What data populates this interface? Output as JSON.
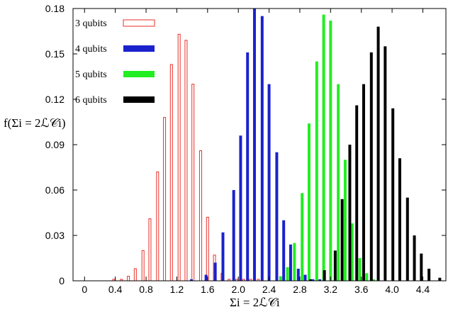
{
  "chart_data": {
    "type": "bar",
    "xlabel": "Σi = 2ℒ𝒞i",
    "ylabel": "f(Σi = 2ℒ𝒞i)",
    "xlim": [
      -0.15,
      4.7
    ],
    "ylim": [
      0,
      0.18
    ],
    "x_ticks": [
      "0",
      "0.4",
      "0.8",
      "1.2",
      "1.6",
      "2.0",
      "2.4",
      "2.8",
      "3.2",
      "3.6",
      "4.0",
      "4.4"
    ],
    "y_ticks": [
      "0",
      "0.03",
      "0.06",
      "0.09",
      "0.12",
      "0.15",
      "0.18"
    ],
    "legend_position": "top-left",
    "series": [
      {
        "name": "3 qubits",
        "color": "#e8322a",
        "style": "hollow",
        "x": [
          0.38,
          0.48,
          0.57,
          0.66,
          0.76,
          0.85,
          0.95,
          1.04,
          1.13,
          1.23,
          1.32,
          1.41,
          1.51,
          1.6,
          1.69,
          1.79,
          1.88,
          1.98,
          2.07,
          2.16,
          2.26
        ],
        "values": [
          0.001,
          0.001,
          0.003,
          0.008,
          0.02,
          0.041,
          0.072,
          0.108,
          0.143,
          0.163,
          0.159,
          0.13,
          0.086,
          0.042,
          0.017,
          0.005,
          0.001,
          0.001,
          0.001,
          0.001,
          0.001
        ]
      },
      {
        "name": "4 qubits",
        "color": "#1a22cc",
        "style": "solid",
        "x": [
          1.39,
          1.58,
          1.7,
          1.8,
          1.94,
          2.03,
          2.12,
          2.21,
          2.31,
          2.4,
          2.5,
          2.59,
          2.68,
          2.78,
          2.87,
          2.97,
          3.06
        ],
        "values": [
          0.001,
          0.004,
          0.012,
          0.032,
          0.06,
          0.096,
          0.151,
          0.18,
          0.175,
          0.13,
          0.085,
          0.04,
          0.024,
          0.008,
          0.004,
          0.001,
          0.001
        ]
      },
      {
        "name": "5 qubits",
        "color": "#22ee22",
        "style": "solid",
        "x": [
          2.55,
          2.64,
          2.73,
          2.83,
          2.92,
          3.02,
          3.11,
          3.2,
          3.3,
          3.39,
          3.48,
          3.58,
          3.67,
          3.76
        ],
        "values": [
          0.003,
          0.009,
          0.025,
          0.058,
          0.104,
          0.145,
          0.176,
          0.172,
          0.13,
          0.08,
          0.038,
          0.015,
          0.005,
          0.001
        ]
      },
      {
        "name": "6 qubits",
        "color": "#000000",
        "style": "solid",
        "x": [
          2.94,
          3.12,
          3.26,
          3.35,
          3.45,
          3.54,
          3.63,
          3.73,
          3.82,
          3.91,
          4.01,
          4.1,
          4.2,
          4.29,
          4.38,
          4.48,
          4.62
        ],
        "values": [
          0.001,
          0.007,
          0.02,
          0.054,
          0.09,
          0.116,
          0.13,
          0.151,
          0.168,
          0.155,
          0.114,
          0.081,
          0.055,
          0.03,
          0.018,
          0.008,
          0.002
        ]
      }
    ]
  }
}
